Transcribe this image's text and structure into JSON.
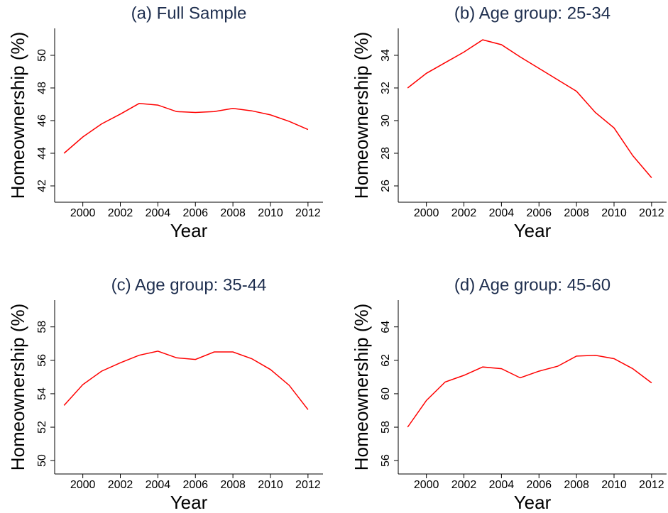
{
  "chart_data": [
    {
      "type": "line",
      "title": "(a) Full Sample",
      "xlabel": "Year",
      "ylabel": "Homeownership (%)",
      "color": "#ff0000",
      "x": [
        1999,
        2000,
        2001,
        2002,
        2003,
        2004,
        2005,
        2006,
        2007,
        2008,
        2009,
        2010,
        2011,
        2012
      ],
      "values": [
        44.0,
        45.0,
        45.8,
        46.4,
        47.05,
        46.95,
        46.55,
        46.5,
        46.55,
        46.75,
        46.6,
        46.35,
        45.95,
        45.45
      ],
      "xlim": [
        1998.5,
        2012.8
      ],
      "xticks": [
        2000,
        2002,
        2004,
        2006,
        2008,
        2010,
        2012
      ],
      "ylim": [
        41,
        51.65
      ],
      "yticks": [
        42,
        44,
        46,
        48,
        50
      ]
    },
    {
      "type": "line",
      "title": "(b) Age group: 25-34",
      "xlabel": "Year",
      "ylabel": "Homeownership (%)",
      "color": "#ff0000",
      "x": [
        1999,
        2000,
        2001,
        2002,
        2003,
        2004,
        2005,
        2006,
        2007,
        2008,
        2009,
        2010,
        2011,
        2012
      ],
      "values": [
        32.0,
        32.9,
        33.55,
        34.2,
        34.95,
        34.65,
        33.9,
        33.2,
        32.5,
        31.8,
        30.5,
        29.55,
        27.85,
        26.5
      ],
      "xlim": [
        1998.5,
        2012.8
      ],
      "xticks": [
        2000,
        2002,
        2004,
        2006,
        2008,
        2010,
        2012
      ],
      "ylim": [
        25,
        35.65
      ],
      "yticks": [
        26,
        28,
        30,
        32,
        34
      ]
    },
    {
      "type": "line",
      "title": "(c) Age group: 35-44",
      "xlabel": "Year",
      "ylabel": "Homeownership (%)",
      "color": "#ff0000",
      "x": [
        1999,
        2000,
        2001,
        2002,
        2003,
        2004,
        2005,
        2006,
        2007,
        2008,
        2009,
        2010,
        2011,
        2012
      ],
      "values": [
        53.3,
        54.55,
        55.35,
        55.85,
        56.3,
        56.55,
        56.15,
        56.05,
        56.5,
        56.5,
        56.1,
        55.45,
        54.5,
        53.05
      ],
      "xlim": [
        1998.5,
        2012.8
      ],
      "xticks": [
        2000,
        2002,
        2004,
        2006,
        2008,
        2010,
        2012
      ],
      "ylim": [
        49.2,
        59.6
      ],
      "yticks": [
        50,
        52,
        54,
        56,
        58
      ]
    },
    {
      "type": "line",
      "title": "(d) Age group: 45-60",
      "xlabel": "Year",
      "ylabel": "Homeownership (%)",
      "color": "#ff0000",
      "x": [
        1999,
        2000,
        2001,
        2002,
        2003,
        2004,
        2005,
        2006,
        2007,
        2008,
        2009,
        2010,
        2011,
        2012
      ],
      "values": [
        58.0,
        59.6,
        60.7,
        61.1,
        61.6,
        61.5,
        60.95,
        61.35,
        61.65,
        62.25,
        62.3,
        62.1,
        61.5,
        60.65
      ],
      "xlim": [
        1998.5,
        2012.8
      ],
      "xticks": [
        2000,
        2002,
        2004,
        2006,
        2008,
        2010,
        2012
      ],
      "ylim": [
        55.2,
        65.6
      ],
      "yticks": [
        56,
        58,
        60,
        62,
        64
      ]
    }
  ]
}
